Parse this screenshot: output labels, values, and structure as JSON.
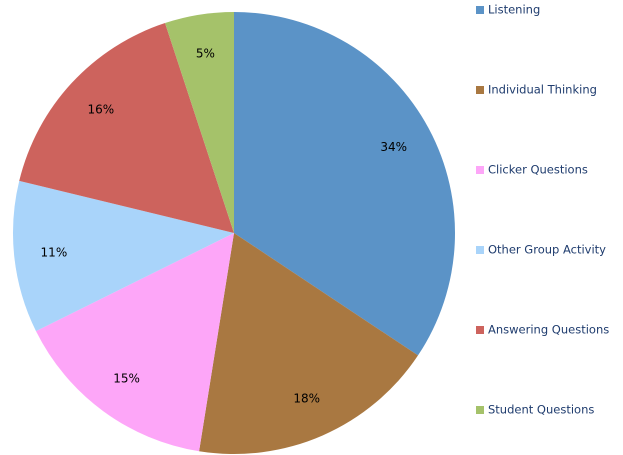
{
  "chart_data": {
    "type": "pie",
    "categories": [
      "Listening",
      "Individual Thinking",
      "Clicker Questions",
      "Other Group Activity",
      "Answering Questions",
      "Student Questions"
    ],
    "values": [
      34,
      18,
      15,
      11,
      16,
      5
    ],
    "value_labels": [
      "34%",
      "18%",
      "15%",
      "11%",
      "16%",
      "5%"
    ],
    "colors": [
      "#5b93c7",
      "#a97841",
      "#fda6f8",
      "#a9d4fa",
      "#cd635d",
      "#a5c26a"
    ],
    "legend": "right"
  }
}
